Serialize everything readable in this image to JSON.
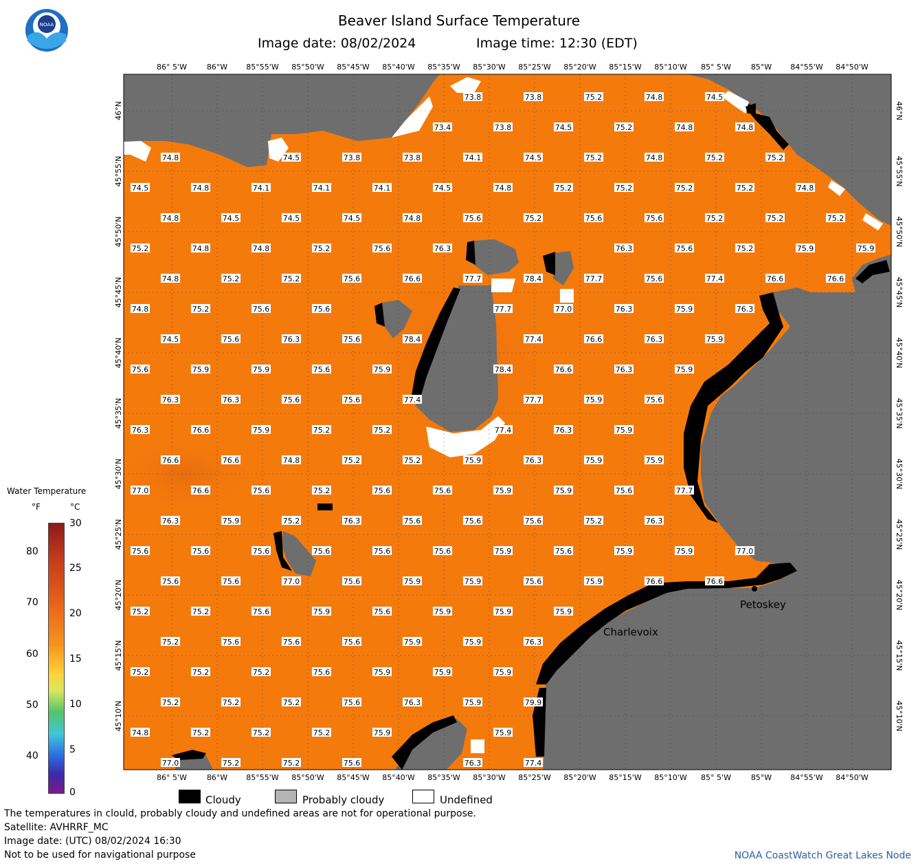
{
  "header": {
    "title": "Beaver Island Surface Temperature",
    "image_date": "Image date: 08/02/2024",
    "image_time": "Image time: 12:30 (EDT)"
  },
  "logo": {
    "text": "NOAA",
    "icon": "noaa-logo-icon"
  },
  "axes": {
    "lon_labels": [
      "86° 5'W",
      "86°W",
      "85°55'W",
      "85°50'W",
      "85°45'W",
      "85°40'W",
      "85°35'W",
      "85°30'W",
      "85°25'W",
      "85°20'W",
      "85°15'W",
      "85°10'W",
      "85° 5'W",
      "85°W",
      "84°55'W",
      "84°50'W"
    ],
    "lat_labels": [
      "46°N",
      "45°55'N",
      "45°50'N",
      "45°45'N",
      "45°40'N",
      "45°35'N",
      "45°30'N",
      "45°25'N",
      "45°20'N",
      "45°15'N",
      "45°10'N"
    ]
  },
  "temperature_grid": {
    "cols": [
      204,
      248,
      292,
      336,
      380,
      424,
      468,
      512,
      556,
      600,
      644,
      688,
      732,
      776,
      820,
      864,
      908,
      952,
      996,
      1040,
      1084,
      1128,
      1172,
      1216,
      1260
    ],
    "rows": [
      [
        "",
        "",
        "",
        "",
        "",
        "",
        "",
        "",
        "",
        "",
        "",
        "73.8",
        "",
        "73.8",
        "",
        "75.2",
        "",
        "74.8",
        "",
        "74.5",
        "",
        "",
        "",
        "",
        ""
      ],
      [
        "",
        "",
        "",
        "",
        "",
        "",
        "",
        "",
        "",
        "",
        "73.4",
        "",
        "73.8",
        "",
        "74.5",
        "",
        "75.2",
        "",
        "74.8",
        "",
        "74.8",
        "",
        "",
        "",
        ""
      ],
      [
        "",
        "74.8",
        "",
        "",
        "",
        "74.5",
        "",
        "73.8",
        "",
        "73.8",
        "",
        "74.1",
        "",
        "74.5",
        "",
        "75.2",
        "",
        "74.8",
        "",
        "75.2",
        "",
        "75.2",
        "",
        "",
        ""
      ],
      [
        "74.5",
        "",
        "74.8",
        "",
        "74.1",
        "",
        "74.1",
        "",
        "74.1",
        "",
        "74.5",
        "",
        "74.8",
        "",
        "75.2",
        "",
        "75.2",
        "",
        "75.2",
        "",
        "75.2",
        "",
        "74.8",
        "",
        ""
      ],
      [
        "",
        "74.8",
        "",
        "74.5",
        "",
        "74.5",
        "",
        "74.5",
        "",
        "74.8",
        "",
        "75.6",
        "",
        "75.2",
        "",
        "75.6",
        "",
        "75.6",
        "",
        "75.2",
        "",
        "75.2",
        "",
        "75.2",
        ""
      ],
      [
        "75.2",
        "",
        "74.8",
        "",
        "74.8",
        "",
        "75.2",
        "",
        "75.6",
        "",
        "76.3",
        "",
        "",
        "",
        "",
        "",
        "76.3",
        "",
        "75.6",
        "",
        "75.2",
        "",
        "75.9",
        "",
        "75.9"
      ],
      [
        "",
        "74.8",
        "",
        "75.2",
        "",
        "75.2",
        "",
        "75.6",
        "",
        "76.6",
        "",
        "77.7",
        "",
        "78.4",
        "",
        "77.7",
        "",
        "75.6",
        "",
        "77.4",
        "",
        "76.6",
        "",
        "76.6",
        ""
      ],
      [
        "74.8",
        "",
        "75.2",
        "",
        "75.6",
        "",
        "75.6",
        "",
        "",
        "",
        "",
        "",
        "77.7",
        "",
        "77.0",
        "",
        "76.3",
        "",
        "75.9",
        "",
        "76.3",
        "",
        "",
        "",
        ""
      ],
      [
        "",
        "74.5",
        "",
        "75.6",
        "",
        "76.3",
        "",
        "75.6",
        "",
        "78.4",
        "",
        "",
        "",
        "77.4",
        "",
        "76.6",
        "",
        "76.3",
        "",
        "75.9",
        "",
        "",
        "",
        "",
        ""
      ],
      [
        "75.6",
        "",
        "75.9",
        "",
        "75.9",
        "",
        "75.6",
        "",
        "75.9",
        "",
        "",
        "",
        "78.4",
        "",
        "76.6",
        "",
        "76.3",
        "",
        "75.9",
        "",
        "",
        "",
        "",
        "",
        ""
      ],
      [
        "",
        "76.3",
        "",
        "76.3",
        "",
        "75.6",
        "",
        "75.6",
        "",
        "77.4",
        "",
        "",
        "",
        "77.7",
        "",
        "75.9",
        "",
        "75.6",
        "",
        "",
        "",
        "",
        "",
        "",
        ""
      ],
      [
        "76.3",
        "",
        "76.6",
        "",
        "75.9",
        "",
        "75.2",
        "",
        "75.2",
        "",
        "",
        "",
        "77.4",
        "",
        "76.3",
        "",
        "75.9",
        "",
        "",
        "",
        "",
        "",
        "",
        "",
        ""
      ],
      [
        "",
        "76.6",
        "",
        "76.6",
        "",
        "74.8",
        "",
        "75.2",
        "",
        "75.2",
        "",
        "75.9",
        "",
        "76.3",
        "",
        "75.9",
        "",
        "75.9",
        "",
        "",
        "",
        "",
        "",
        "",
        ""
      ],
      [
        "77.0",
        "",
        "76.6",
        "",
        "75.6",
        "",
        "75.2",
        "",
        "75.6",
        "",
        "75.6",
        "",
        "75.9",
        "",
        "75.9",
        "",
        "75.6",
        "",
        "77.7",
        "",
        "",
        "",
        "",
        "",
        ""
      ],
      [
        "",
        "76.3",
        "",
        "75.9",
        "",
        "75.2",
        "",
        "76.3",
        "",
        "75.6",
        "",
        "75.6",
        "",
        "75.6",
        "",
        "75.2",
        "",
        "76.3",
        "",
        "",
        "",
        "",
        "",
        "",
        ""
      ],
      [
        "75.6",
        "",
        "75.6",
        "",
        "75.6",
        "",
        "75.6",
        "",
        "75.6",
        "",
        "75.6",
        "",
        "75.9",
        "",
        "75.6",
        "",
        "75.9",
        "",
        "75.9",
        "",
        "77.0",
        "",
        "",
        "",
        ""
      ],
      [
        "",
        "75.6",
        "",
        "75.6",
        "",
        "77.0",
        "",
        "75.6",
        "",
        "75.9",
        "",
        "75.9",
        "",
        "75.6",
        "",
        "75.9",
        "",
        "76.6",
        "",
        "76.6",
        "",
        "",
        "",
        "",
        ""
      ],
      [
        "75.2",
        "",
        "75.2",
        "",
        "75.6",
        "",
        "75.9",
        "",
        "75.6",
        "",
        "75.9",
        "",
        "75.9",
        "",
        "75.9",
        "",
        "",
        "",
        "",
        "",
        "",
        "",
        "",
        "",
        ""
      ],
      [
        "",
        "75.2",
        "",
        "75.6",
        "",
        "75.6",
        "",
        "75.6",
        "",
        "75.9",
        "",
        "75.9",
        "",
        "76.3",
        "",
        "",
        "",
        "",
        "",
        "",
        "",
        "",
        "",
        "",
        ""
      ],
      [
        "75.2",
        "",
        "75.2",
        "",
        "75.2",
        "",
        "75.6",
        "",
        "75.9",
        "",
        "75.9",
        "",
        "75.9",
        "",
        "",
        "",
        "",
        "",
        "",
        "",
        "",
        "",
        "",
        "",
        ""
      ],
      [
        "",
        "75.2",
        "",
        "75.2",
        "",
        "75.2",
        "",
        "75.6",
        "",
        "76.3",
        "",
        "75.9",
        "",
        "79.9",
        "",
        "",
        "",
        "",
        "",
        "",
        "",
        "",
        "",
        "",
        ""
      ],
      [
        "74.8",
        "",
        "75.2",
        "",
        "75.2",
        "",
        "75.2",
        "",
        "75.9",
        "",
        "",
        "",
        "75.9",
        "",
        "",
        "",
        "",
        "",
        "",
        "",
        "",
        "",
        "",
        "",
        ""
      ],
      [
        "",
        "77.0",
        "",
        "75.2",
        "",
        "75.2",
        "",
        "75.6",
        "",
        "",
        "",
        "76.3",
        "",
        "77.4",
        "",
        "",
        "",
        "",
        "",
        "",
        "",
        "",
        "",
        "",
        ""
      ]
    ]
  },
  "cities": [
    {
      "name": "Charlevoix"
    },
    {
      "name": "Petoskey"
    }
  ],
  "colorbar": {
    "title": "Water Temperature",
    "unit_f": "°F",
    "unit_c": "°C",
    "f_ticks": [
      "80",
      "70",
      "60",
      "50",
      "40"
    ],
    "c_ticks": [
      "30",
      "25",
      "20",
      "15",
      "10",
      "5",
      "0"
    ]
  },
  "legend": {
    "cloudy": "Cloudy",
    "probably_cloudy": "Probably cloudy",
    "undefined": "Undefined"
  },
  "colors": {
    "water": "#f57a0c",
    "land": "#6e6e6e",
    "cloudy": "#000000",
    "probably_cloudy": "#b4b4b4",
    "undefined": "#ffffff",
    "credit": "#2b5fa8"
  },
  "footer": {
    "disclaimer": "The temperatures in clould, probably cloudy and undefined areas are not for operational purpose.",
    "satellite": "Satellite: AVHRRF_MC",
    "utc_date": "Image date: (UTC) 08/02/2024  16:30",
    "nav_warning": "Not to be used for navigational purpose",
    "credit": "NOAA CoastWatch Great Lakes Node"
  }
}
